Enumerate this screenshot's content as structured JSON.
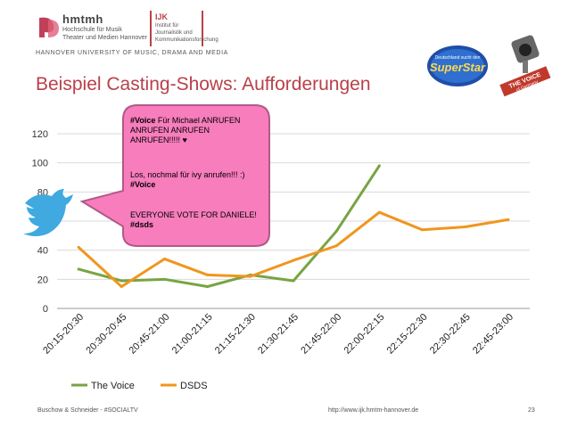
{
  "header": {
    "org_name": "hmtmh",
    "org_subtitle_line1": "Hochschule für Musik",
    "org_subtitle_line2": "Theater und Medien Hannover",
    "institute_name": "IJK",
    "institute_subtitle": "Institut für Journalistik und Kommunikationsforschung",
    "university_line": "HANNOVER UNIVERSITY OF MUSIC, DRAMA AND MEDIA",
    "page_title": "Beispiel Casting-Shows: Aufforderungen"
  },
  "badges": {
    "superstar_line1": "Deutschland sucht den",
    "superstar_line2": "SuperStar",
    "voice_line1": "THE VOICE",
    "voice_line2": "of Germany"
  },
  "tweet_bubble": {
    "tweet1": {
      "hashtag": "#Voice",
      "text": " Für Michael ANRUFEN ANRUFEN ANRUFEN ANRUFEN!!!!! ♥"
    },
    "tweet2": {
      "text": "Los, nochmal für ivy anrufen!!! :) ",
      "hashtag": "#Voice"
    },
    "tweet3": {
      "text": "EVERYONE VOTE FOR DANIELE! ",
      "hashtag": "#dsds"
    },
    "icon": "twitter-bird-icon"
  },
  "colors": {
    "title": "#b8404a",
    "voice_series": "#77a443",
    "dsds_series": "#f0961e",
    "bubble_fill": "#f77dbc",
    "bubble_stroke": "#b05a88",
    "twitter_blue": "#3fa9e0"
  },
  "chart_data": {
    "type": "line",
    "categories": [
      "20:15-20:30",
      "20:30-20:45",
      "20:45-21:00",
      "21:00-21:15",
      "21:15-21:30",
      "21:30-21:45",
      "21:45-22:00",
      "22:00-22:15",
      "22:15-22:30",
      "22:30-22:45",
      "22:45-23:00"
    ],
    "series": [
      {
        "name": "The Voice",
        "values": [
          27,
          19,
          20,
          15,
          23,
          19,
          53,
          98,
          null,
          null,
          null
        ]
      },
      {
        "name": "DSDS",
        "values": [
          42,
          15,
          34,
          23,
          22,
          33,
          43,
          66,
          54,
          56,
          61
        ]
      }
    ],
    "yticks": [
      0,
      20,
      40,
      60,
      80,
      100,
      120
    ],
    "ylim": [
      0,
      120
    ],
    "grid": true,
    "legend": "bottom",
    "title": "",
    "xlabel": "",
    "ylabel": ""
  },
  "footer": {
    "left": "Buschow & Schneider - #SOCIALTV",
    "url": "http://www.ijk.hmtm-hannover.de",
    "page_number": "23"
  }
}
